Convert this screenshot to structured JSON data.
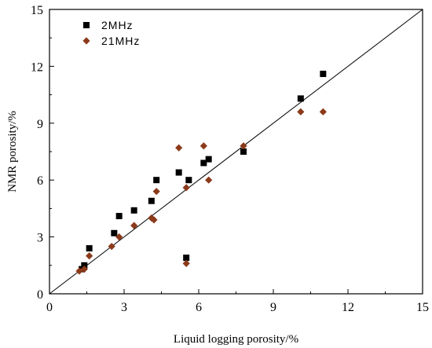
{
  "chart_data": {
    "type": "scatter",
    "xlabel": "Liquid logging porosity/%",
    "ylabel": "NMR porosity/%",
    "xlim": [
      0,
      15
    ],
    "ylim": [
      0,
      15
    ],
    "xticks": [
      "0",
      "3",
      "6",
      "9",
      "12",
      "15"
    ],
    "yticks": [
      "0",
      "3",
      "6",
      "9",
      "12",
      "15"
    ],
    "grid": false,
    "legend": "top-left",
    "reference_line": {
      "from": [
        0,
        0
      ],
      "to": [
        15,
        15
      ]
    },
    "series": [
      {
        "name": "2MHz",
        "marker": "square",
        "color": "#000000",
        "x": [
          1.3,
          1.4,
          1.6,
          2.6,
          2.8,
          3.4,
          4.1,
          4.3,
          5.2,
          5.5,
          5.6,
          6.2,
          6.4,
          7.8,
          10.1,
          11.0
        ],
        "y": [
          1.3,
          1.5,
          2.4,
          3.2,
          4.1,
          4.4,
          4.9,
          6.0,
          6.4,
          1.9,
          6.0,
          6.9,
          7.1,
          7.5,
          10.3,
          11.6
        ]
      },
      {
        "name": "21MHz",
        "marker": "diamond",
        "color": "#8B3A1A",
        "x": [
          1.2,
          1.4,
          1.6,
          2.5,
          2.8,
          3.4,
          4.1,
          4.2,
          4.3,
          5.2,
          5.5,
          5.5,
          6.2,
          6.4,
          7.8,
          10.1,
          11.0
        ],
        "y": [
          1.2,
          1.3,
          2.0,
          2.5,
          3.0,
          3.6,
          4.0,
          3.9,
          5.4,
          7.7,
          1.6,
          5.6,
          7.8,
          6.0,
          7.8,
          9.6,
          9.6
        ]
      }
    ]
  }
}
